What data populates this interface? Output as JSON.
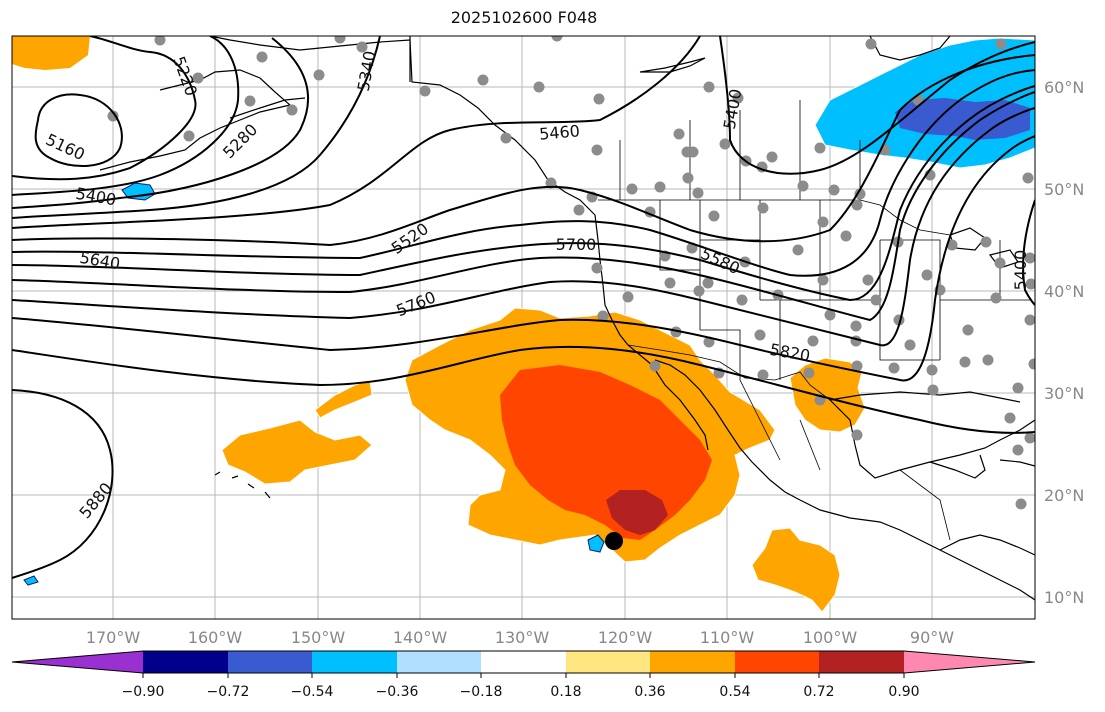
{
  "title": "2025102600 F048",
  "map": {
    "longitude_labels": [
      "170°W",
      "160°W",
      "150°W",
      "140°W",
      "130°W",
      "120°W",
      "110°W",
      "100°W",
      "90°W"
    ],
    "latitude_labels": [
      "60°N",
      "50°N",
      "40°N",
      "30°N",
      "20°N",
      "10°N"
    ],
    "contour_labels": [
      "5160",
      "5220",
      "5280",
      "5340",
      "5400",
      "5400",
      "5460",
      "5520",
      "5580",
      "5640",
      "5700",
      "5760",
      "5820",
      "5880",
      "5400"
    ]
  },
  "colorbar": {
    "colors": [
      "#9b30d0",
      "#00008b",
      "#3a5bd0",
      "#00bfff",
      "#b0e0ff",
      "#ffffff",
      "#ffe680",
      "#ffa500",
      "#ff4500",
      "#b22222",
      "#ff88b0"
    ],
    "tick_labels": [
      "−0.90",
      "−0.72",
      "−0.54",
      "−0.36",
      "−0.18",
      "0.18",
      "0.36",
      "0.54",
      "0.72",
      "0.90"
    ]
  }
}
